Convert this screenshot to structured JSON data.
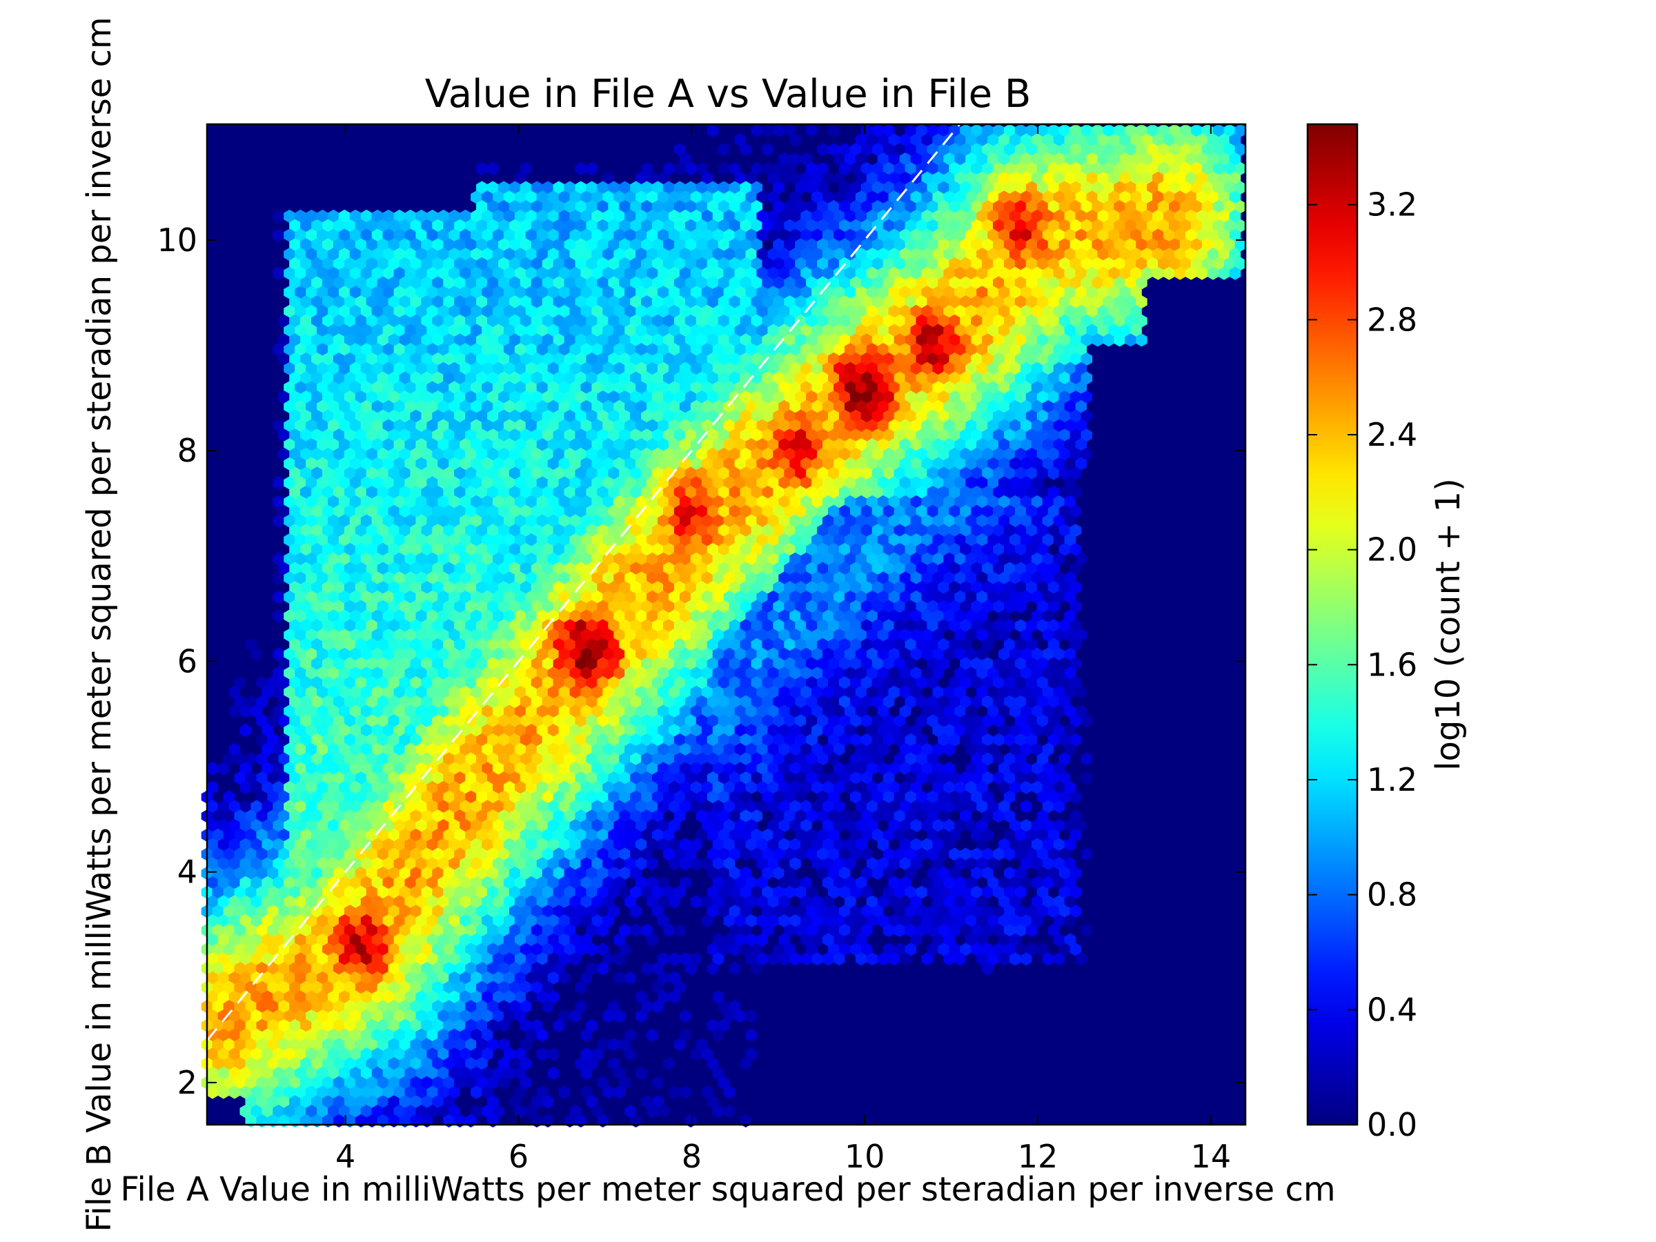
{
  "chart_data": {
    "type": "heatmap",
    "subtype": "hexbin",
    "title": "Value in File A vs Value in File B",
    "xlabel": "File A Value in milliWatts per meter squared per steradian per inverse cm",
    "ylabel": "File B Value in milliWatts per meter squared per steradian per inverse cm",
    "xlim": [
      2.4,
      14.4
    ],
    "ylim": [
      1.6,
      11.1
    ],
    "xticks": [
      4,
      6,
      8,
      10,
      12,
      14
    ],
    "yticks": [
      2,
      4,
      6,
      8,
      10
    ],
    "colormap": "jet",
    "background_color": "#00007f",
    "reference_line": {
      "style": "dashed",
      "color": "#ffffff",
      "slope": 1,
      "intercept": 0
    },
    "colorbar": {
      "label": "log10 (count + 1)",
      "range": [
        0.0,
        3.48
      ],
      "ticks": [
        "0.0",
        "0.4",
        "0.8",
        "1.2",
        "1.6",
        "2.0",
        "2.4",
        "2.8",
        "3.2"
      ]
    },
    "density_model": {
      "ridge_points": [
        [
          2.6,
          2.6
        ],
        [
          4.2,
          3.3
        ],
        [
          5.0,
          4.3
        ],
        [
          6.6,
          5.9
        ],
        [
          7.8,
          7.0
        ],
        [
          8.8,
          7.8
        ],
        [
          10.0,
          8.6
        ],
        [
          11.2,
          9.3
        ],
        [
          12.0,
          10.0
        ],
        [
          13.5,
          10.2
        ]
      ],
      "hotspots": [
        {
          "x": 4.2,
          "y": 3.3,
          "value": 3.2
        },
        {
          "x": 6.8,
          "y": 6.1,
          "value": 3.4
        },
        {
          "x": 8.0,
          "y": 7.4,
          "value": 3.0
        },
        {
          "x": 9.2,
          "y": 8.0,
          "value": 3.05
        },
        {
          "x": 10.0,
          "y": 8.6,
          "value": 3.45
        },
        {
          "x": 10.8,
          "y": 9.0,
          "value": 3.2
        },
        {
          "x": 11.8,
          "y": 10.1,
          "value": 3.05
        }
      ],
      "upper_left_plateau": {
        "x": [
          3.3,
          8.8
        ],
        "y": [
          4.0,
          10.5
        ],
        "value": 1.6
      },
      "lower_right_sparse": {
        "x": [
          8.2,
          12.5
        ],
        "y": [
          3.1,
          7.6
        ],
        "value": 0.5
      },
      "empty_regions": [
        {
          "x": [
            2.4,
            3.2
          ],
          "y": [
            6.3,
            11.1
          ]
        },
        {
          "x": [
            8.8,
            14.4
          ],
          "y": [
            1.6,
            3.0
          ]
        },
        {
          "x": [
            12.6,
            14.4
          ],
          "y": [
            1.6,
            9.0
          ]
        }
      ]
    }
  }
}
